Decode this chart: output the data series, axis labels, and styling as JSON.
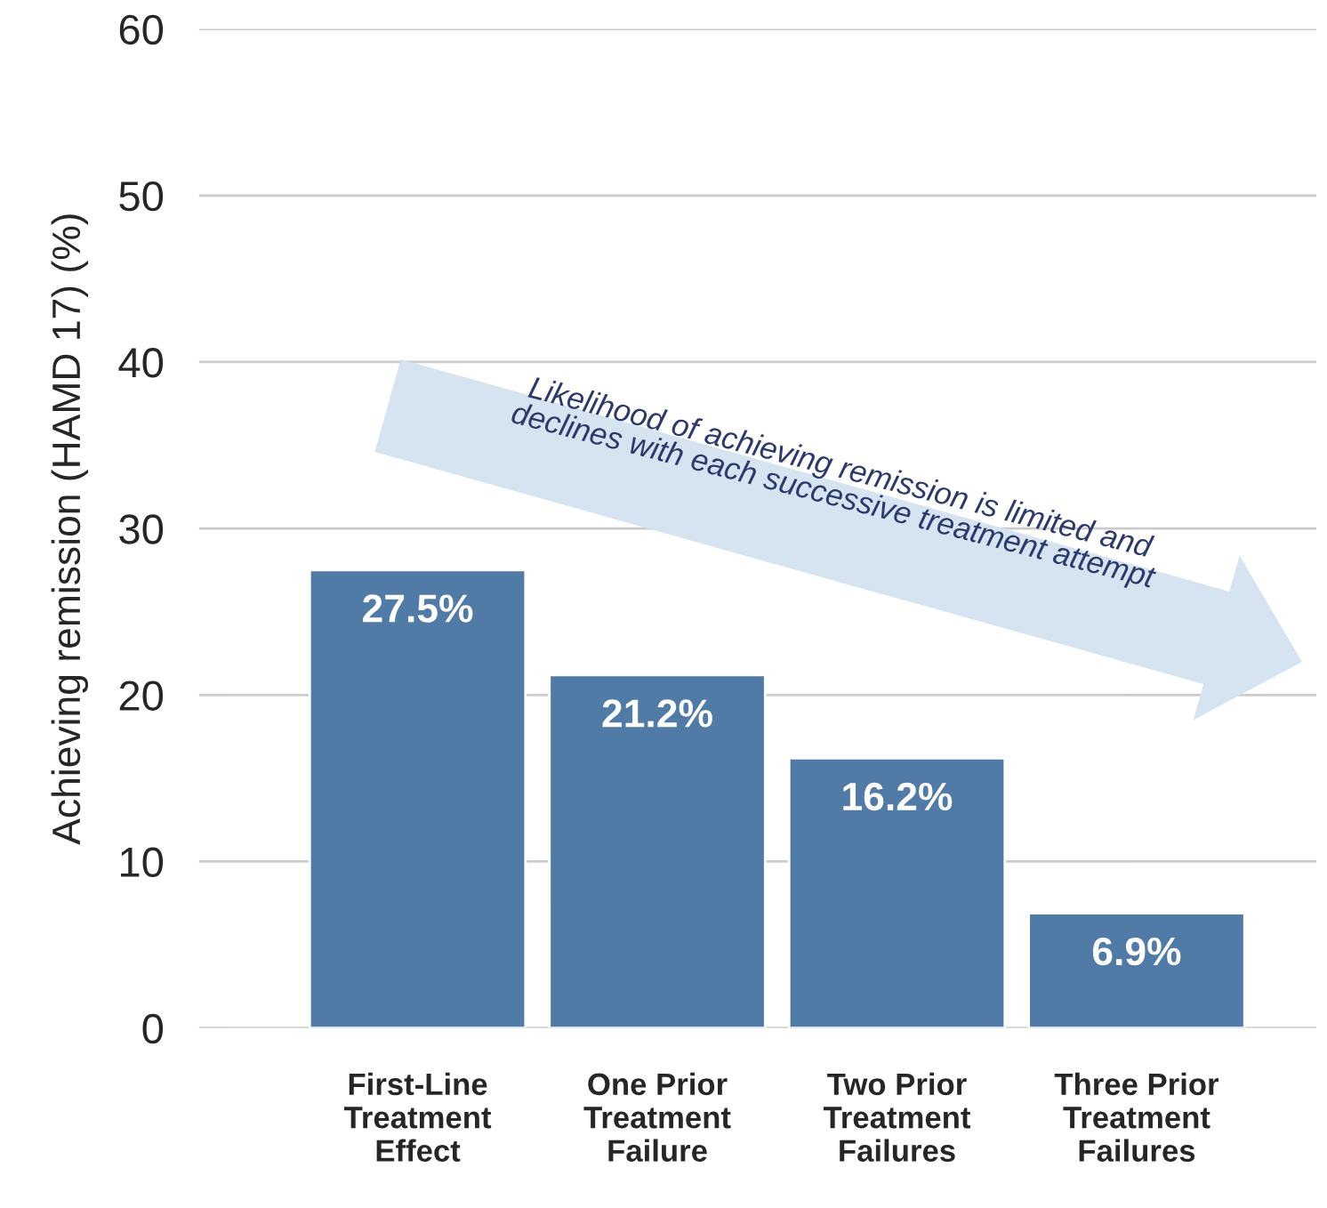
{
  "chart_data": {
    "type": "bar",
    "ylabel": "Achieving remission (HAMD 17) (%)",
    "categories": [
      "First-Line\nTreatment\nEffect",
      "One Prior\nTreatment\nFailure",
      "Two Prior\nTreatment\nFailures",
      "Three Prior\nTreatment\nFailures"
    ],
    "values": [
      27.5,
      21.2,
      16.2,
      6.9
    ],
    "value_labels": [
      "27.5%",
      "21.2%",
      "16.2%",
      "6.9%"
    ],
    "color": "#4f7ba6",
    "ylim": [
      0,
      60
    ],
    "yticks": [
      0,
      10,
      20,
      30,
      40,
      50,
      60
    ],
    "grid": "y",
    "annotations": [
      "Likelihood of achieving remission is limited and\ndeclines with each successive treatment attempt"
    ]
  }
}
